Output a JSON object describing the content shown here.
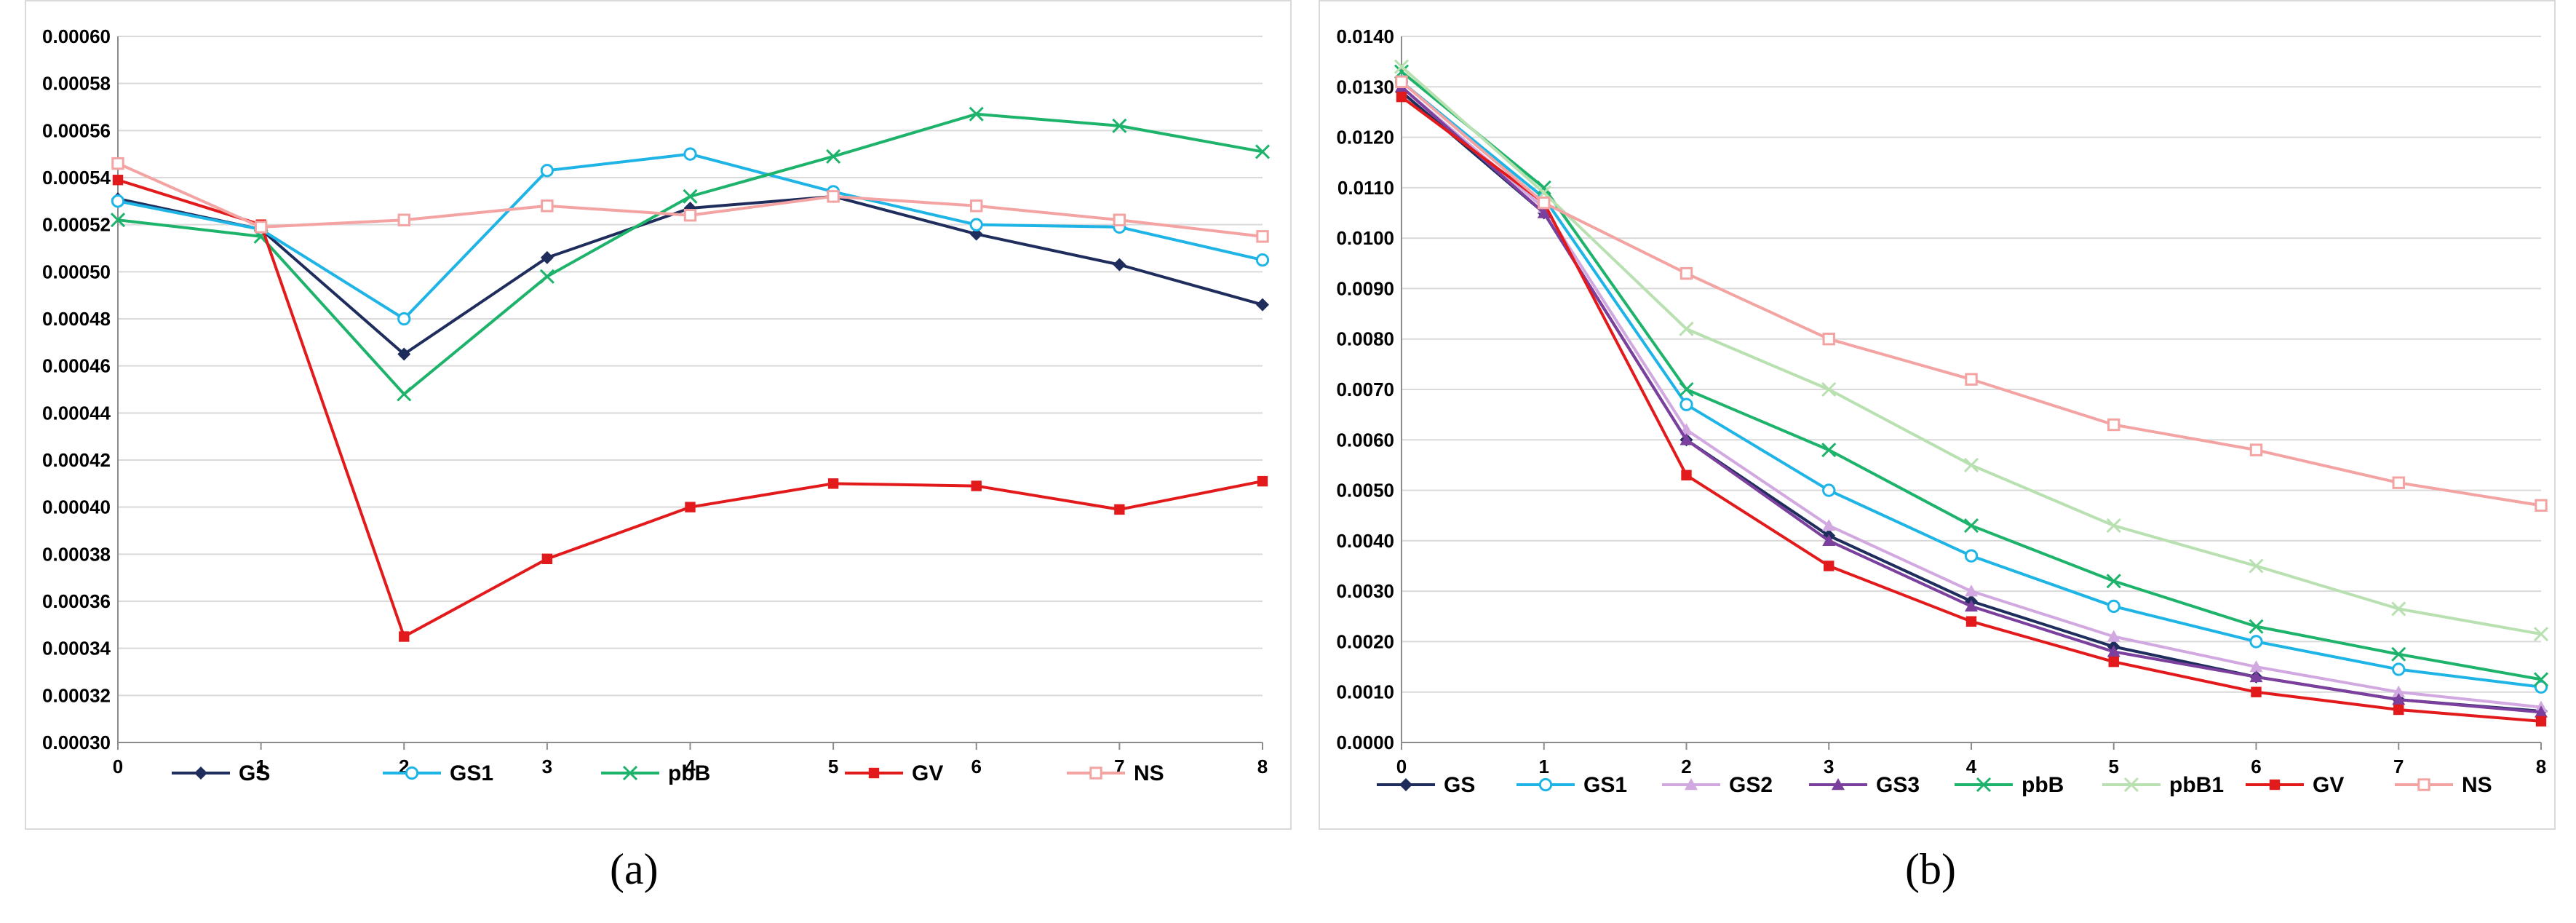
{
  "charts": [
    {
      "caption": "(a)",
      "chart_data": {
        "type": "line",
        "x": [
          0,
          1,
          2,
          3,
          4,
          5,
          6,
          7,
          8
        ],
        "xlim": [
          0,
          8
        ],
        "ylim": [
          0.0003,
          0.0006
        ],
        "yticks": [
          "0.00030",
          "0.00032",
          "0.00034",
          "0.00036",
          "0.00038",
          "0.00040",
          "0.00042",
          "0.00044",
          "0.00046",
          "0.00048",
          "0.00050",
          "0.00052",
          "0.00054",
          "0.00056",
          "0.00058",
          "0.00060"
        ],
        "xticks": [
          "0",
          "1",
          "2",
          "3",
          "4",
          "5",
          "6",
          "7",
          "8"
        ],
        "grid": true,
        "legend_position": "bottom",
        "series": [
          {
            "name": "GS",
            "color": "#1f2d5c",
            "marker": "diamond",
            "values": [
              0.000531,
              0.000518,
              0.000465,
              0.000506,
              0.000527,
              0.000532,
              0.000516,
              0.000503,
              0.000486
            ]
          },
          {
            "name": "GS1",
            "color": "#1fb4e6",
            "marker": "circle",
            "values": [
              0.00053,
              0.000518,
              0.00048,
              0.000543,
              0.00055,
              0.000534,
              0.00052,
              0.000519,
              0.000505
            ]
          },
          {
            "name": "pbB",
            "color": "#1db36b",
            "marker": "x",
            "values": [
              0.000522,
              0.000515,
              0.000448,
              0.000498,
              0.000532,
              0.000549,
              0.000567,
              0.000562,
              0.000551
            ]
          },
          {
            "name": "GV",
            "color": "#e31a1c",
            "marker": "square",
            "values": [
              0.000539,
              0.00052,
              0.000345,
              0.000378,
              0.0004,
              0.00041,
              0.000409,
              0.000399,
              0.000411
            ]
          },
          {
            "name": "NS",
            "color": "#f4a3a3",
            "marker": "square-open",
            "values": [
              0.000546,
              0.000519,
              0.000522,
              0.000528,
              0.000524,
              0.000532,
              0.000528,
              0.000522,
              0.000515
            ]
          }
        ]
      }
    },
    {
      "caption": "(b)",
      "chart_data": {
        "type": "line",
        "x": [
          0,
          1,
          2,
          3,
          4,
          5,
          6,
          7,
          8
        ],
        "xlim": [
          0,
          8
        ],
        "ylim": [
          0,
          0.014
        ],
        "yticks": [
          "0.0000",
          "0.0010",
          "0.0020",
          "0.0030",
          "0.0040",
          "0.0050",
          "0.0060",
          "0.0070",
          "0.0080",
          "0.0090",
          "0.0100",
          "0.0110",
          "0.0120",
          "0.0130",
          "0.0140"
        ],
        "xticks": [
          "0",
          "1",
          "2",
          "3",
          "4",
          "5",
          "6",
          "7",
          "8"
        ],
        "grid": true,
        "legend_position": "bottom",
        "series": [
          {
            "name": "GS",
            "color": "#1f2d5c",
            "marker": "diamond",
            "values": [
              0.0129,
              0.0105,
              0.006,
              0.0041,
              0.0028,
              0.0019,
              0.0013,
              0.00085,
              0.00062
            ]
          },
          {
            "name": "GS1",
            "color": "#1fb4e6",
            "marker": "circle",
            "values": [
              0.0131,
              0.0108,
              0.0067,
              0.005,
              0.0037,
              0.0027,
              0.002,
              0.00145,
              0.0011
            ]
          },
          {
            "name": "GS2",
            "color": "#d2a8e0",
            "marker": "triangle",
            "values": [
              0.013,
              0.0106,
              0.0062,
              0.0043,
              0.003,
              0.0021,
              0.0015,
              0.001,
              0.0007
            ]
          },
          {
            "name": "GS3",
            "color": "#7b3f9e",
            "marker": "triangle",
            "values": [
              0.013,
              0.0105,
              0.006,
              0.004,
              0.0027,
              0.0018,
              0.0013,
              0.00085,
              0.0006
            ]
          },
          {
            "name": "pbB",
            "color": "#1db36b",
            "marker": "x",
            "values": [
              0.0133,
              0.011,
              0.007,
              0.0058,
              0.0043,
              0.0032,
              0.0023,
              0.00175,
              0.00125
            ]
          },
          {
            "name": "pbB1",
            "color": "#b8e0b0",
            "marker": "x",
            "values": [
              0.0134,
              0.0109,
              0.0082,
              0.007,
              0.0055,
              0.0043,
              0.0035,
              0.00265,
              0.00215
            ]
          },
          {
            "name": "GV",
            "color": "#e31a1c",
            "marker": "square",
            "values": [
              0.0128,
              0.0107,
              0.0053,
              0.0035,
              0.0024,
              0.0016,
              0.001,
              0.00065,
              0.00042
            ]
          },
          {
            "name": "NS",
            "color": "#f4a3a3",
            "marker": "square-open",
            "values": [
              0.0131,
              0.0107,
              0.0093,
              0.008,
              0.0072,
              0.0063,
              0.0058,
              0.00515,
              0.0047
            ]
          }
        ]
      }
    }
  ]
}
